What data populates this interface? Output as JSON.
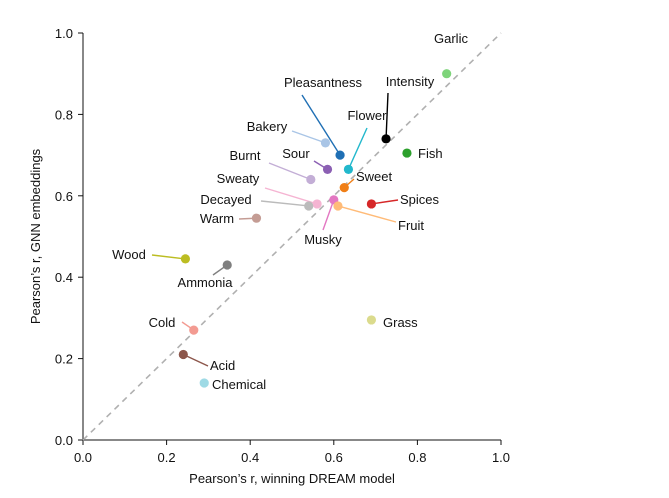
{
  "chart_data": {
    "type": "scatter",
    "xlabel": "Pearson’s r, winning DREAM model",
    "ylabel": "Pearson’s r, GNN embeddings",
    "xlim": [
      0.0,
      1.0
    ],
    "ylim": [
      0.0,
      1.0
    ],
    "xticks": [
      "0.0",
      "0.2",
      "0.4",
      "0.6",
      "0.8",
      "1.0"
    ],
    "yticks": [
      "0.0",
      "0.2",
      "0.4",
      "0.6",
      "0.8",
      "1.0"
    ],
    "grid": false,
    "reference_line": "y = x (dashed)",
    "points": [
      {
        "label": "Garlic",
        "x": 0.87,
        "y": 0.9,
        "color": "#7ed47a"
      },
      {
        "label": "Intensity",
        "x": 0.725,
        "y": 0.74,
        "color": "#000000"
      },
      {
        "label": "Pleasantness",
        "x": 0.615,
        "y": 0.7,
        "color": "#1f6fb4"
      },
      {
        "label": "Flower",
        "x": 0.635,
        "y": 0.665,
        "color": "#22b8cc"
      },
      {
        "label": "Bakery",
        "x": 0.58,
        "y": 0.73,
        "color": "#a9c5e6"
      },
      {
        "label": "Fish",
        "x": 0.775,
        "y": 0.705,
        "color": "#2ca02c"
      },
      {
        "label": "Sour",
        "x": 0.585,
        "y": 0.665,
        "color": "#8b5fb3"
      },
      {
        "label": "Burnt",
        "x": 0.545,
        "y": 0.64,
        "color": "#c3aed6"
      },
      {
        "label": "Sweet",
        "x": 0.625,
        "y": 0.62,
        "color": "#f07f17"
      },
      {
        "label": "Sweaty",
        "x": 0.56,
        "y": 0.58,
        "color": "#f5b4d2"
      },
      {
        "label": "Spices",
        "x": 0.69,
        "y": 0.58,
        "color": "#d62728"
      },
      {
        "label": "Decayed",
        "x": 0.54,
        "y": 0.575,
        "color": "#bbbbbb"
      },
      {
        "label": "Musky",
        "x": 0.6,
        "y": 0.59,
        "color": "#e377c2"
      },
      {
        "label": "Fruit",
        "x": 0.61,
        "y": 0.575,
        "color": "#ffbb78"
      },
      {
        "label": "Warm",
        "x": 0.415,
        "y": 0.545,
        "color": "#c49c94"
      },
      {
        "label": "Wood",
        "x": 0.245,
        "y": 0.445,
        "color": "#bcbd22"
      },
      {
        "label": "Ammonia",
        "x": 0.345,
        "y": 0.43,
        "color": "#7f7f7f"
      },
      {
        "label": "Grass",
        "x": 0.69,
        "y": 0.295,
        "color": "#dbdb8d"
      },
      {
        "label": "Cold",
        "x": 0.265,
        "y": 0.27,
        "color": "#f39b92"
      },
      {
        "label": "Acid",
        "x": 0.24,
        "y": 0.21,
        "color": "#8c564b"
      },
      {
        "label": "Chemical",
        "x": 0.29,
        "y": 0.14,
        "color": "#9edae5"
      }
    ]
  }
}
